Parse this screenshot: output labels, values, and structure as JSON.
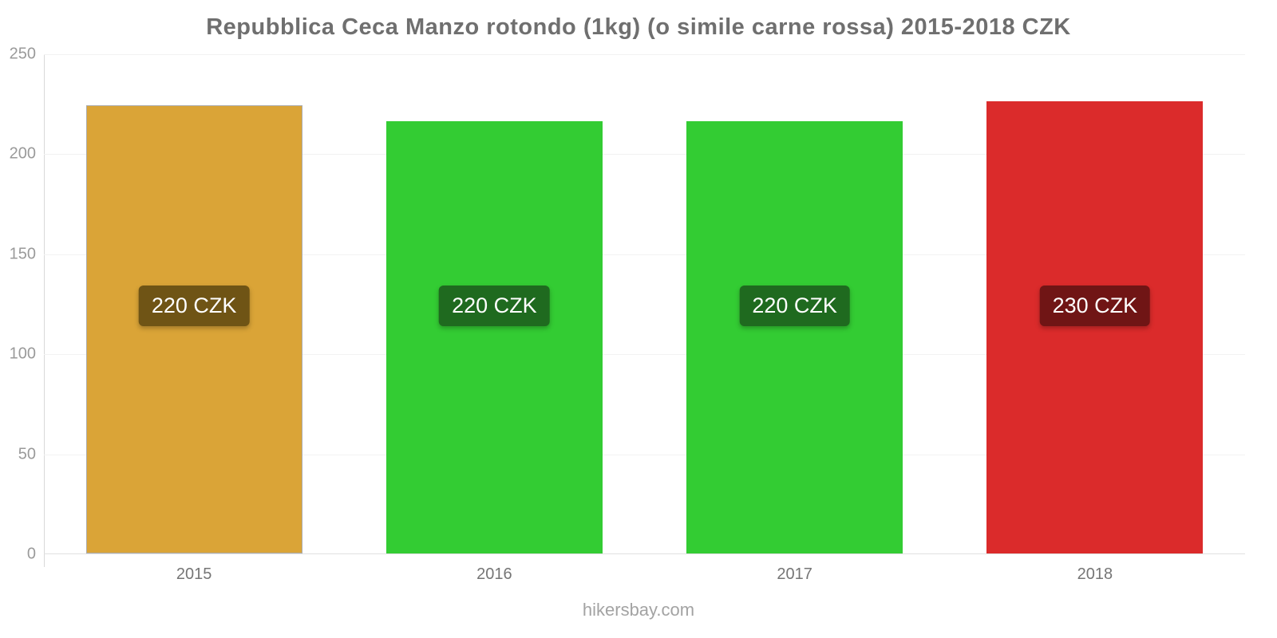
{
  "title": "Repubblica Ceca Manzo rotondo (1kg) (o simile carne rossa) 2015-2018 CZK",
  "footer": "hikersbay.com",
  "chart_data": {
    "type": "bar",
    "title": "Repubblica Ceca Manzo rotondo (1kg) (o simile carne rossa) 2015-2018 CZK",
    "categories": [
      "2015",
      "2016",
      "2017",
      "2018"
    ],
    "values": [
      224,
      216,
      216,
      226
    ],
    "labels": [
      "220 CZK",
      "220 CZK",
      "220 CZK",
      "230 CZK"
    ],
    "bar_colors": [
      "#DAA437",
      "#33CC33",
      "#33CC33",
      "#DB2B2B"
    ],
    "bar_borders": [
      "#ABABAB",
      "none",
      "none",
      "none"
    ],
    "label_bg_colors": [
      "#6F5415",
      "#1F6A1F",
      "#1F6A1F",
      "#701515"
    ],
    "xlabel": "",
    "ylabel": "",
    "ylim": [
      0,
      250
    ],
    "yticks": [
      0,
      50,
      100,
      150,
      200,
      250
    ],
    "grid": true,
    "legend": "none",
    "currency": "CZK",
    "watermark": "hikersbay.com"
  }
}
